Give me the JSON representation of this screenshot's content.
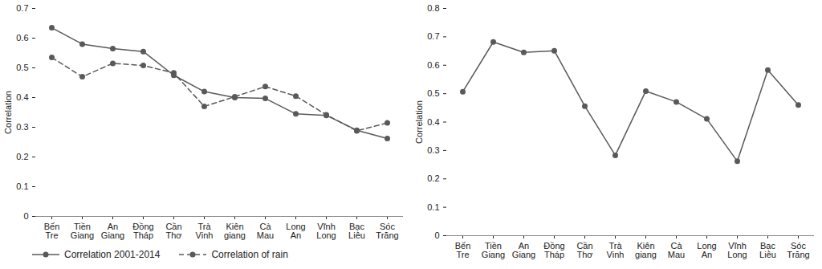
{
  "chart_data": [
    {
      "type": "line",
      "categories": [
        "Bến Tre",
        "Tiền Giang",
        "An Giang",
        "Đồng Tháp",
        "Cần Thơ",
        "Trà Vinh",
        "Kiên giang",
        "Cà Mau",
        "Long An",
        "Vĩnh Long",
        "Bạc Liêu",
        "Sóc Trăng"
      ],
      "y_label": "Correlation",
      "ylim": [
        0,
        0.7
      ],
      "yticks": [
        0,
        0.1,
        0.2,
        0.3,
        0.4,
        0.5,
        0.6,
        0.7
      ],
      "legend": "bottom",
      "series": [
        {
          "name": "Correlation 2001-2014",
          "color": "#595959",
          "marker": "circle",
          "line_style": "solid",
          "values": [
            0.635,
            0.58,
            0.565,
            0.555,
            0.475,
            0.42,
            0.4,
            0.397,
            0.345,
            0.34,
            0.29,
            0.262
          ]
        },
        {
          "name": "Correlation of rain",
          "color": "#595959",
          "marker": "circle",
          "line_style": "dashed",
          "values": [
            0.535,
            0.47,
            0.515,
            0.508,
            0.483,
            0.37,
            0.403,
            0.437,
            0.405,
            0.342,
            0.288,
            0.315
          ]
        }
      ]
    },
    {
      "type": "line",
      "categories": [
        "Bến Tre",
        "Tiền Giang",
        "An Giang",
        "Đồng Tháp",
        "Cần Thơ",
        "Trà Vinh",
        "Kiên giang",
        "Cà Mau",
        "Long An",
        "Vĩnh Long",
        "Bạc Liêu",
        "Sóc Trăng"
      ],
      "y_label": "Correlation",
      "ylim": [
        0,
        0.8
      ],
      "yticks": [
        0,
        0.1,
        0.2,
        0.3,
        0.4,
        0.5,
        0.6,
        0.7,
        0.8
      ],
      "series": [
        {
          "color": "#595959",
          "marker": "circle",
          "line_style": "solid",
          "values": [
            0.507,
            0.682,
            0.645,
            0.651,
            0.456,
            0.283,
            0.509,
            0.471,
            0.411,
            0.262,
            0.583,
            0.46
          ]
        }
      ]
    }
  ]
}
